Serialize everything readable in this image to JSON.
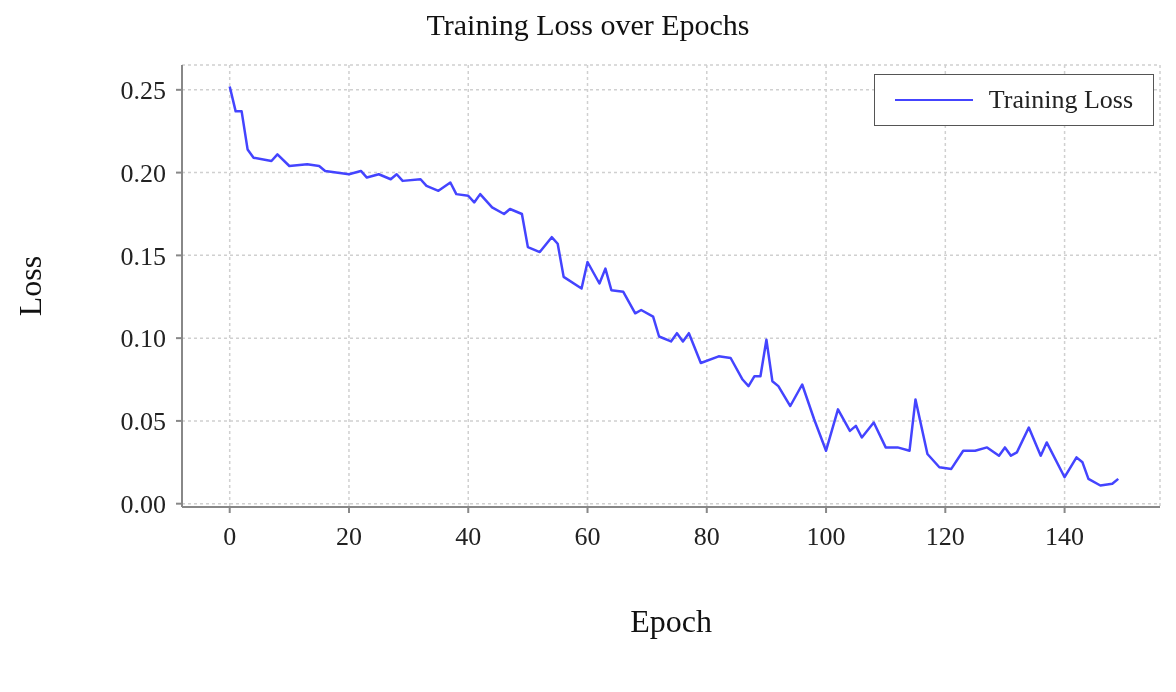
{
  "chart_data": {
    "type": "line",
    "title": "Training Loss over Epochs",
    "xlabel": "Epoch",
    "ylabel": "Loss",
    "xlim": [
      -8,
      156
    ],
    "ylim": [
      -0.002,
      0.265
    ],
    "xticks": [
      0,
      20,
      40,
      60,
      80,
      100,
      120,
      140
    ],
    "yticks": [
      {
        "value": 0,
        "label": "0.00"
      },
      {
        "value": 0.05,
        "label": "0.05"
      },
      {
        "value": 0.1,
        "label": "0.10"
      },
      {
        "value": 0.15,
        "label": "0.15"
      },
      {
        "value": 0.2,
        "label": "0.20"
      },
      {
        "value": 0.25,
        "label": "0.25"
      }
    ],
    "grid": true,
    "legend": "top right",
    "marker": "none",
    "line_style": "solid",
    "series": [
      {
        "name": "Training Loss",
        "color": "#4444ff",
        "x": [
          0,
          1,
          2,
          3,
          4,
          7,
          8,
          10,
          13,
          15,
          16,
          20,
          22,
          23,
          25,
          27,
          28,
          29,
          32,
          33,
          35,
          37,
          38,
          40,
          41,
          42,
          44,
          46,
          47,
          49,
          50,
          52,
          54,
          55,
          56,
          59,
          60,
          62,
          63,
          64,
          66,
          68,
          69,
          71,
          72,
          74,
          75,
          76,
          77,
          79,
          82,
          84,
          86,
          87,
          88,
          89,
          90,
          91,
          92,
          94,
          96,
          98,
          100,
          102,
          104,
          105,
          106,
          108,
          110,
          112,
          114,
          115,
          117,
          119,
          121,
          123,
          125,
          127,
          129,
          130,
          131,
          132,
          134,
          136,
          137,
          140,
          142,
          143,
          144,
          146,
          148,
          149
        ],
        "values": [
          0.252,
          0.237,
          0.237,
          0.214,
          0.209,
          0.207,
          0.211,
          0.204,
          0.205,
          0.204,
          0.201,
          0.199,
          0.201,
          0.197,
          0.199,
          0.196,
          0.199,
          0.195,
          0.196,
          0.192,
          0.189,
          0.194,
          0.187,
          0.186,
          0.182,
          0.187,
          0.179,
          0.175,
          0.178,
          0.175,
          0.155,
          0.152,
          0.161,
          0.157,
          0.137,
          0.13,
          0.146,
          0.133,
          0.142,
          0.129,
          0.128,
          0.115,
          0.117,
          0.113,
          0.101,
          0.098,
          0.103,
          0.098,
          0.103,
          0.085,
          0.089,
          0.088,
          0.075,
          0.071,
          0.077,
          0.077,
          0.099,
          0.074,
          0.071,
          0.059,
          0.072,
          0.051,
          0.032,
          0.057,
          0.044,
          0.047,
          0.04,
          0.049,
          0.034,
          0.034,
          0.032,
          0.063,
          0.03,
          0.022,
          0.021,
          0.032,
          0.032,
          0.034,
          0.029,
          0.034,
          0.029,
          0.031,
          0.046,
          0.029,
          0.037,
          0.016,
          0.028,
          0.025,
          0.015,
          0.011,
          0.012,
          0.015
        ]
      }
    ]
  }
}
